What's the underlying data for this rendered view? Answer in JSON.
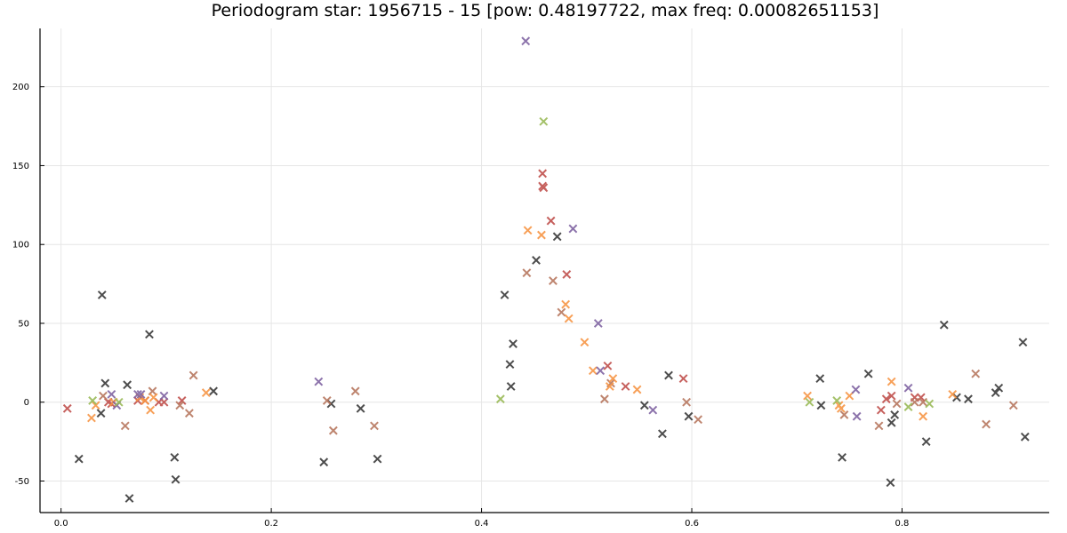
{
  "chart_data": {
    "type": "scatter",
    "title": "Periodogram star: 1956715 - 15 [pow: 0.48197722, max freq: 0.00082651153]",
    "xlabel": "",
    "ylabel": "",
    "xlim": [
      -0.02,
      0.94
    ],
    "ylim": [
      -70,
      237
    ],
    "xticks": [
      0.0,
      0.2,
      0.4,
      0.6,
      0.8
    ],
    "xtick_labels": [
      "0.0",
      "0.2",
      "0.4",
      "0.6",
      "0.8"
    ],
    "yticks": [
      -50,
      0,
      50,
      100,
      150,
      200
    ],
    "ytick_labels": [
      "-50",
      "0",
      "50",
      "100",
      "150",
      "200"
    ],
    "grid": true,
    "legend": "none",
    "marker": "x",
    "series": [
      {
        "color": "#3a3a3a",
        "points": [
          [
            0.017,
            -36
          ],
          [
            0.038,
            -7
          ],
          [
            0.039,
            68
          ],
          [
            0.042,
            12
          ],
          [
            0.063,
            11
          ],
          [
            0.065,
            -61
          ],
          [
            0.084,
            43
          ],
          [
            0.108,
            -35
          ],
          [
            0.109,
            -49
          ],
          [
            0.145,
            7
          ],
          [
            0.257,
            -1
          ],
          [
            0.25,
            -38
          ],
          [
            0.285,
            -4
          ],
          [
            0.301,
            -36
          ],
          [
            0.422,
            68
          ],
          [
            0.427,
            24
          ],
          [
            0.428,
            10
          ],
          [
            0.43,
            37
          ],
          [
            0.452,
            90
          ],
          [
            0.472,
            105
          ],
          [
            0.578,
            17
          ],
          [
            0.572,
            -20
          ],
          [
            0.597,
            -9
          ],
          [
            0.555,
            -2
          ],
          [
            0.722,
            15
          ],
          [
            0.723,
            -2
          ],
          [
            0.743,
            -35
          ],
          [
            0.768,
            18
          ],
          [
            0.789,
            -51
          ],
          [
            0.79,
            -13
          ],
          [
            0.793,
            -8
          ],
          [
            0.823,
            -25
          ],
          [
            0.84,
            49
          ],
          [
            0.852,
            3
          ],
          [
            0.863,
            2
          ],
          [
            0.889,
            6
          ],
          [
            0.892,
            9
          ],
          [
            0.915,
            38
          ],
          [
            0.917,
            -22
          ]
        ]
      },
      {
        "color": "#c0504d",
        "points": [
          [
            0.006,
            -4
          ],
          [
            0.045,
            0
          ],
          [
            0.048,
            -1
          ],
          [
            0.073,
            1
          ],
          [
            0.08,
            1
          ],
          [
            0.093,
            0
          ],
          [
            0.098,
            0
          ],
          [
            0.115,
            1
          ],
          [
            0.458,
            145
          ],
          [
            0.458,
            137
          ],
          [
            0.459,
            136
          ],
          [
            0.466,
            115
          ],
          [
            0.481,
            81
          ],
          [
            0.52,
            23
          ],
          [
            0.537,
            10
          ],
          [
            0.592,
            15
          ],
          [
            0.78,
            -5
          ],
          [
            0.785,
            2
          ],
          [
            0.79,
            4
          ],
          [
            0.812,
            3
          ],
          [
            0.818,
            3
          ]
        ]
      },
      {
        "color": "#b87860",
        "points": [
          [
            0.04,
            4
          ],
          [
            0.061,
            -15
          ],
          [
            0.087,
            7
          ],
          [
            0.113,
            -2
          ],
          [
            0.122,
            -7
          ],
          [
            0.126,
            17
          ],
          [
            0.253,
            1
          ],
          [
            0.259,
            -18
          ],
          [
            0.28,
            7
          ],
          [
            0.298,
            -15
          ],
          [
            0.443,
            82
          ],
          [
            0.468,
            77
          ],
          [
            0.476,
            57
          ],
          [
            0.517,
            2
          ],
          [
            0.523,
            12
          ],
          [
            0.595,
            0
          ],
          [
            0.606,
            -11
          ],
          [
            0.745,
            -8
          ],
          [
            0.778,
            -15
          ],
          [
            0.795,
            -1
          ],
          [
            0.812,
            0
          ],
          [
            0.82,
            0
          ],
          [
            0.87,
            18
          ],
          [
            0.88,
            -14
          ],
          [
            0.906,
            -2
          ]
        ]
      },
      {
        "color": "#f79646",
        "points": [
          [
            0.029,
            -10
          ],
          [
            0.033,
            -2
          ],
          [
            0.05,
            0
          ],
          [
            0.075,
            3
          ],
          [
            0.08,
            1
          ],
          [
            0.085,
            -5
          ],
          [
            0.088,
            3
          ],
          [
            0.138,
            6
          ],
          [
            0.444,
            109
          ],
          [
            0.457,
            106
          ],
          [
            0.48,
            62
          ],
          [
            0.483,
            53
          ],
          [
            0.498,
            38
          ],
          [
            0.506,
            20
          ],
          [
            0.522,
            10
          ],
          [
            0.525,
            15
          ],
          [
            0.548,
            8
          ],
          [
            0.71,
            4
          ],
          [
            0.74,
            -2
          ],
          [
            0.742,
            -4
          ],
          [
            0.75,
            4
          ],
          [
            0.79,
            13
          ],
          [
            0.82,
            -9
          ],
          [
            0.848,
            5
          ]
        ]
      },
      {
        "color": "#8064a2",
        "points": [
          [
            0.048,
            5
          ],
          [
            0.053,
            -2
          ],
          [
            0.073,
            5
          ],
          [
            0.076,
            5
          ],
          [
            0.098,
            4
          ],
          [
            0.245,
            13
          ],
          [
            0.442,
            229
          ],
          [
            0.487,
            110
          ],
          [
            0.511,
            50
          ],
          [
            0.513,
            20
          ],
          [
            0.563,
            -5
          ],
          [
            0.756,
            8
          ],
          [
            0.757,
            -9
          ],
          [
            0.806,
            9
          ]
        ]
      },
      {
        "color": "#9bbb59",
        "points": [
          [
            0.03,
            1
          ],
          [
            0.055,
            0
          ],
          [
            0.418,
            2
          ],
          [
            0.459,
            178
          ],
          [
            0.712,
            0
          ],
          [
            0.738,
            1
          ],
          [
            0.806,
            -3
          ],
          [
            0.826,
            -1
          ]
        ]
      }
    ]
  }
}
